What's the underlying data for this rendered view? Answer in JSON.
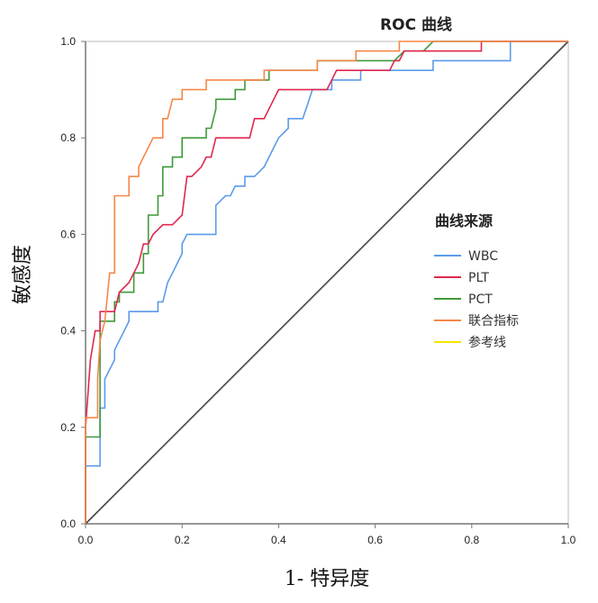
{
  "chart_data": {
    "type": "line",
    "title": "ROC 曲线",
    "xlabel": "1- 特异度",
    "ylabel": "敏感度",
    "xlim": [
      0,
      1
    ],
    "ylim": [
      0,
      1
    ],
    "xticks": [
      "0.0",
      "0.2",
      "0.4",
      "0.6",
      "0.8",
      "1.0"
    ],
    "yticks": [
      "0.0",
      "0.2",
      "0.4",
      "0.6",
      "0.8",
      "1.0"
    ],
    "grid": false,
    "legend": {
      "title": "曲线来源",
      "placement": "right"
    },
    "series": [
      {
        "name": "WBC",
        "color": "#5b9bea",
        "points": [
          [
            0,
            0
          ],
          [
            0,
            0.12
          ],
          [
            0.03,
            0.12
          ],
          [
            0.03,
            0.24
          ],
          [
            0.04,
            0.24
          ],
          [
            0.04,
            0.3
          ],
          [
            0.05,
            0.32
          ],
          [
            0.06,
            0.34
          ],
          [
            0.06,
            0.36
          ],
          [
            0.07,
            0.38
          ],
          [
            0.08,
            0.4
          ],
          [
            0.09,
            0.42
          ],
          [
            0.09,
            0.44
          ],
          [
            0.15,
            0.44
          ],
          [
            0.15,
            0.46
          ],
          [
            0.16,
            0.46
          ],
          [
            0.17,
            0.5
          ],
          [
            0.18,
            0.52
          ],
          [
            0.19,
            0.54
          ],
          [
            0.2,
            0.56
          ],
          [
            0.2,
            0.58
          ],
          [
            0.21,
            0.6
          ],
          [
            0.27,
            0.6
          ],
          [
            0.27,
            0.66
          ],
          [
            0.29,
            0.68
          ],
          [
            0.3,
            0.68
          ],
          [
            0.31,
            0.7
          ],
          [
            0.33,
            0.7
          ],
          [
            0.33,
            0.72
          ],
          [
            0.35,
            0.72
          ],
          [
            0.37,
            0.74
          ],
          [
            0.38,
            0.76
          ],
          [
            0.39,
            0.78
          ],
          [
            0.4,
            0.8
          ],
          [
            0.42,
            0.82
          ],
          [
            0.42,
            0.84
          ],
          [
            0.45,
            0.84
          ],
          [
            0.46,
            0.87
          ],
          [
            0.47,
            0.9
          ],
          [
            0.51,
            0.9
          ],
          [
            0.51,
            0.92
          ],
          [
            0.57,
            0.92
          ],
          [
            0.57,
            0.94
          ],
          [
            0.72,
            0.94
          ],
          [
            0.72,
            0.96
          ],
          [
            0.88,
            0.96
          ],
          [
            0.88,
            1
          ],
          [
            1,
            1
          ]
        ]
      },
      {
        "name": "PLT",
        "color": "#e0284f",
        "points": [
          [
            0,
            0
          ],
          [
            0,
            0.2
          ],
          [
            0.01,
            0.34
          ],
          [
            0.02,
            0.4
          ],
          [
            0.03,
            0.4
          ],
          [
            0.03,
            0.44
          ],
          [
            0.06,
            0.44
          ],
          [
            0.07,
            0.48
          ],
          [
            0.09,
            0.5
          ],
          [
            0.1,
            0.52
          ],
          [
            0.11,
            0.54
          ],
          [
            0.12,
            0.58
          ],
          [
            0.13,
            0.58
          ],
          [
            0.14,
            0.6
          ],
          [
            0.16,
            0.62
          ],
          [
            0.18,
            0.62
          ],
          [
            0.2,
            0.64
          ],
          [
            0.21,
            0.72
          ],
          [
            0.22,
            0.72
          ],
          [
            0.24,
            0.74
          ],
          [
            0.25,
            0.76
          ],
          [
            0.26,
            0.76
          ],
          [
            0.27,
            0.8
          ],
          [
            0.34,
            0.8
          ],
          [
            0.35,
            0.84
          ],
          [
            0.37,
            0.84
          ],
          [
            0.39,
            0.88
          ],
          [
            0.4,
            0.9
          ],
          [
            0.5,
            0.9
          ],
          [
            0.51,
            0.92
          ],
          [
            0.52,
            0.94
          ],
          [
            0.63,
            0.94
          ],
          [
            0.64,
            0.96
          ],
          [
            0.65,
            0.96
          ],
          [
            0.66,
            0.98
          ],
          [
            0.82,
            0.98
          ],
          [
            0.82,
            1
          ],
          [
            1,
            1
          ]
        ]
      },
      {
        "name": "PCT",
        "color": "#3f9a3a",
        "points": [
          [
            0,
            0
          ],
          [
            0,
            0.18
          ],
          [
            0.03,
            0.18
          ],
          [
            0.03,
            0.42
          ],
          [
            0.06,
            0.42
          ],
          [
            0.06,
            0.46
          ],
          [
            0.07,
            0.46
          ],
          [
            0.07,
            0.48
          ],
          [
            0.1,
            0.48
          ],
          [
            0.1,
            0.52
          ],
          [
            0.12,
            0.52
          ],
          [
            0.12,
            0.56
          ],
          [
            0.13,
            0.56
          ],
          [
            0.13,
            0.64
          ],
          [
            0.15,
            0.64
          ],
          [
            0.15,
            0.68
          ],
          [
            0.16,
            0.68
          ],
          [
            0.16,
            0.74
          ],
          [
            0.18,
            0.74
          ],
          [
            0.18,
            0.76
          ],
          [
            0.2,
            0.76
          ],
          [
            0.2,
            0.8
          ],
          [
            0.25,
            0.8
          ],
          [
            0.25,
            0.82
          ],
          [
            0.26,
            0.82
          ],
          [
            0.27,
            0.86
          ],
          [
            0.27,
            0.88
          ],
          [
            0.31,
            0.88
          ],
          [
            0.31,
            0.9
          ],
          [
            0.33,
            0.9
          ],
          [
            0.33,
            0.92
          ],
          [
            0.38,
            0.92
          ],
          [
            0.38,
            0.94
          ],
          [
            0.48,
            0.94
          ],
          [
            0.48,
            0.96
          ],
          [
            0.64,
            0.96
          ],
          [
            0.66,
            0.98
          ],
          [
            0.7,
            0.98
          ],
          [
            0.72,
            1
          ],
          [
            1,
            1
          ]
        ]
      },
      {
        "name": "联合指标",
        "color": "#f7874a",
        "points": [
          [
            0,
            0
          ],
          [
            0,
            0.22
          ],
          [
            0.025,
            0.22
          ],
          [
            0.025,
            0.3
          ],
          [
            0.03,
            0.38
          ],
          [
            0.04,
            0.42
          ],
          [
            0.05,
            0.52
          ],
          [
            0.06,
            0.52
          ],
          [
            0.06,
            0.68
          ],
          [
            0.09,
            0.68
          ],
          [
            0.09,
            0.72
          ],
          [
            0.11,
            0.72
          ],
          [
            0.11,
            0.74
          ],
          [
            0.12,
            0.76
          ],
          [
            0.13,
            0.78
          ],
          [
            0.14,
            0.8
          ],
          [
            0.16,
            0.8
          ],
          [
            0.16,
            0.84
          ],
          [
            0.17,
            0.84
          ],
          [
            0.18,
            0.88
          ],
          [
            0.2,
            0.88
          ],
          [
            0.2,
            0.9
          ],
          [
            0.25,
            0.9
          ],
          [
            0.25,
            0.92
          ],
          [
            0.37,
            0.92
          ],
          [
            0.37,
            0.94
          ],
          [
            0.48,
            0.94
          ],
          [
            0.48,
            0.96
          ],
          [
            0.56,
            0.96
          ],
          [
            0.56,
            0.98
          ],
          [
            0.65,
            0.98
          ],
          [
            0.65,
            1
          ],
          [
            1,
            1
          ]
        ]
      },
      {
        "name": "参考线",
        "color": "#f2e600",
        "line_color": "#444444",
        "points": [
          [
            0,
            0
          ],
          [
            1,
            1
          ]
        ]
      }
    ]
  }
}
